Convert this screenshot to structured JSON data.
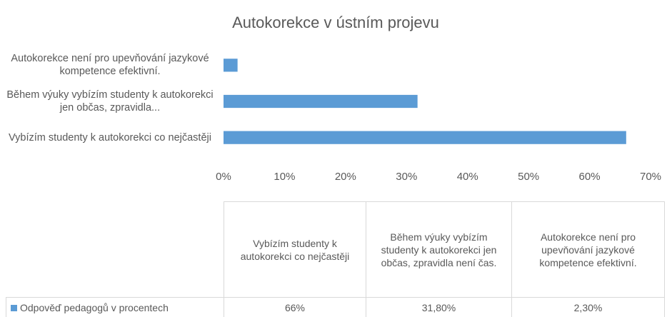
{
  "chart_data": {
    "type": "hbar",
    "title": "Autokorekce v ústním projevu",
    "categories": [
      "Vybízím studenty k autokorekci co nejčastěji",
      "Během výuky vybízím studenty k autokorekci jen občas, zpravidla není čas.",
      "Autokorekce není pro upevňování jazykové kompetence efektivní."
    ],
    "category_axis_labels": [
      "Vybízím studenty k autokorekci co nejčastěji",
      "Během výuky vybízím studenty k autokorekci jen občas, zpravidla...",
      "Autokorekce není pro upevňování jazykové kompetence efektivní."
    ],
    "series": [
      {
        "name": "Odpověď pedagogů v procentech",
        "color": "#5b9bd5",
        "values": [
          66,
          31.8,
          2.3
        ],
        "value_labels": [
          "66%",
          "31,80%",
          "2,30%"
        ]
      }
    ],
    "xlim": [
      0,
      70
    ],
    "xticks": [
      {
        "value": 0,
        "label": "0%"
      },
      {
        "value": 10,
        "label": "10%"
      },
      {
        "value": 20,
        "label": "20%"
      },
      {
        "value": 30,
        "label": "30%"
      },
      {
        "value": 40,
        "label": "40%"
      },
      {
        "value": 50,
        "label": "50%"
      },
      {
        "value": 60,
        "label": "60%"
      },
      {
        "value": 70,
        "label": "70%"
      }
    ],
    "grid": false
  }
}
